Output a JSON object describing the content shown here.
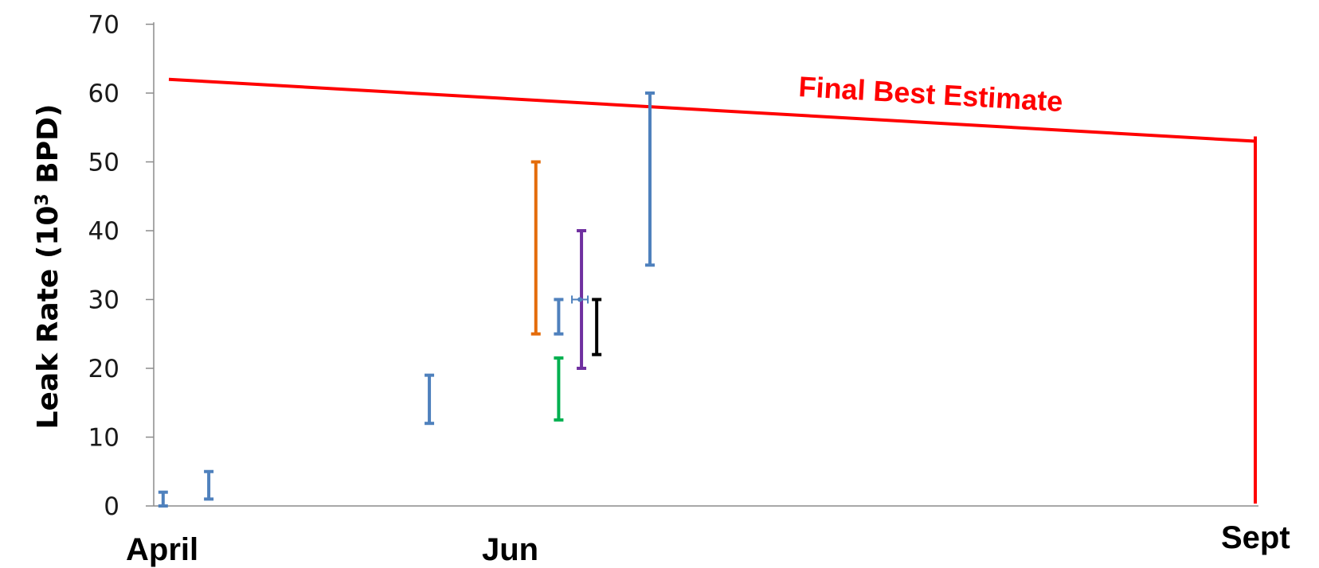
{
  "chart_data": {
    "type": "errorbar",
    "title": "",
    "ylabel_main": "Leak Rate (10",
    "ylabel_sup": "3",
    "ylabel_end": " BPD)",
    "xlabel": "",
    "ylim": [
      0,
      70
    ],
    "y_ticks": [
      "0",
      "10",
      "20",
      "30",
      "40",
      "50",
      "60",
      "70"
    ],
    "x_ticks": [
      "April",
      "Jun",
      "Sept"
    ],
    "grid": false,
    "error_bars": [
      {
        "x": "Apr 22",
        "low": 0,
        "high": 2,
        "color": "#4f81bd"
      },
      {
        "x": "Apr 28",
        "low": 1,
        "high": 5,
        "color": "#4f81bd"
      },
      {
        "x": "May 27",
        "low": 12,
        "high": 19,
        "color": "#4f81bd"
      },
      {
        "x": "Jun 10",
        "low": 25,
        "high": 50,
        "color": "#e46c0a"
      },
      {
        "x": "Jun 13",
        "low": 25,
        "high": 30,
        "color": "#4f81bd"
      },
      {
        "x": "Jun 13",
        "low": 12.5,
        "high": 21.5,
        "color": "#00b050"
      },
      {
        "x": "Jun 16",
        "low": 20,
        "high": 40,
        "color": "#7030a0"
      },
      {
        "x": "Jun 18",
        "low": 22,
        "high": 30,
        "color": "#000000"
      },
      {
        "x": "Jun 25",
        "low": 35,
        "high": 60,
        "color": "#4f81bd"
      }
    ],
    "point_marker": {
      "x": "Jun 16",
      "y": 30,
      "color": "#4f81bd"
    },
    "final_estimate_line": {
      "label": "Final Best Estimate",
      "start": 62,
      "end": 53,
      "color": "#ff0000"
    }
  }
}
